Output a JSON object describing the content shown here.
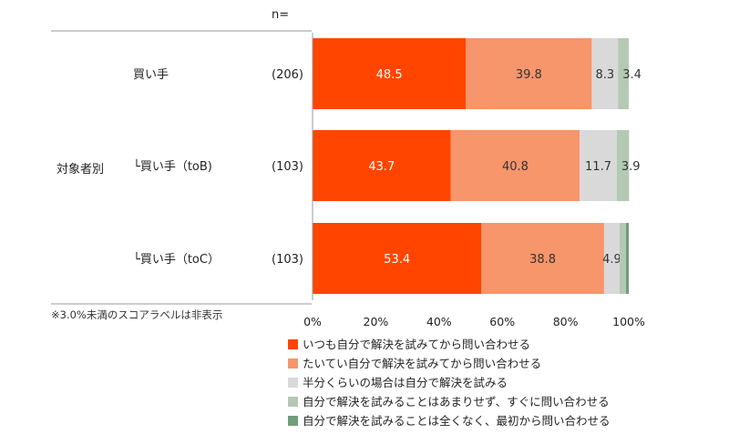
{
  "chart_data": {
    "type": "bar",
    "orientation": "horizontal",
    "stacked": true,
    "n_header": "n=",
    "group_label": "対象者別",
    "categories": [
      {
        "label": "買い手",
        "n": "(206)"
      },
      {
        "label": "└買い手（toB)",
        "n": "(103)"
      },
      {
        "label": "└買い手（toC）",
        "n": "(103)"
      }
    ],
    "series": [
      {
        "name": "いつも自分で解決を試みてから問い合わせる",
        "color": "#ff4500",
        "values": [
          48.5,
          43.7,
          53.4
        ],
        "labels": [
          "48.5",
          "43.7",
          "53.4"
        ],
        "label_color": "#ffffff"
      },
      {
        "name": "たいてい自分で解決を試みてから問い合わせる",
        "color": "#f7956b",
        "values": [
          39.8,
          40.8,
          38.8
        ],
        "labels": [
          "39.8",
          "40.8",
          "38.8"
        ],
        "label_color": "#333333"
      },
      {
        "name": "半分くらいの場合は自分で解決を試みる",
        "color": "#d9d9d9",
        "values": [
          8.3,
          11.7,
          4.9
        ],
        "labels": [
          "8.3",
          "11.7",
          "4.9"
        ],
        "label_color": "#333333"
      },
      {
        "name": "自分で解決を試みることはあまりせず、すぐに問い合わせる",
        "color": "#b4c9b4",
        "values": [
          3.4,
          3.9,
          2.0
        ],
        "labels": [
          "3.4",
          "3.9",
          ""
        ],
        "label_color": "#333333"
      },
      {
        "name": "自分で解決を試みることは全くなく、最初から問い合わせる",
        "color": "#6f9e7a",
        "values": [
          0.0,
          0.0,
          0.9
        ],
        "labels": [
          "",
          "",
          ""
        ],
        "label_color": "#333333"
      }
    ],
    "xlim": [
      0,
      100
    ],
    "x_ticks": [
      "0%",
      "20%",
      "40%",
      "60%",
      "80%",
      "100%"
    ],
    "legend_position": "bottom",
    "note": "※3.0%未満のスコアラベルは非表示"
  }
}
